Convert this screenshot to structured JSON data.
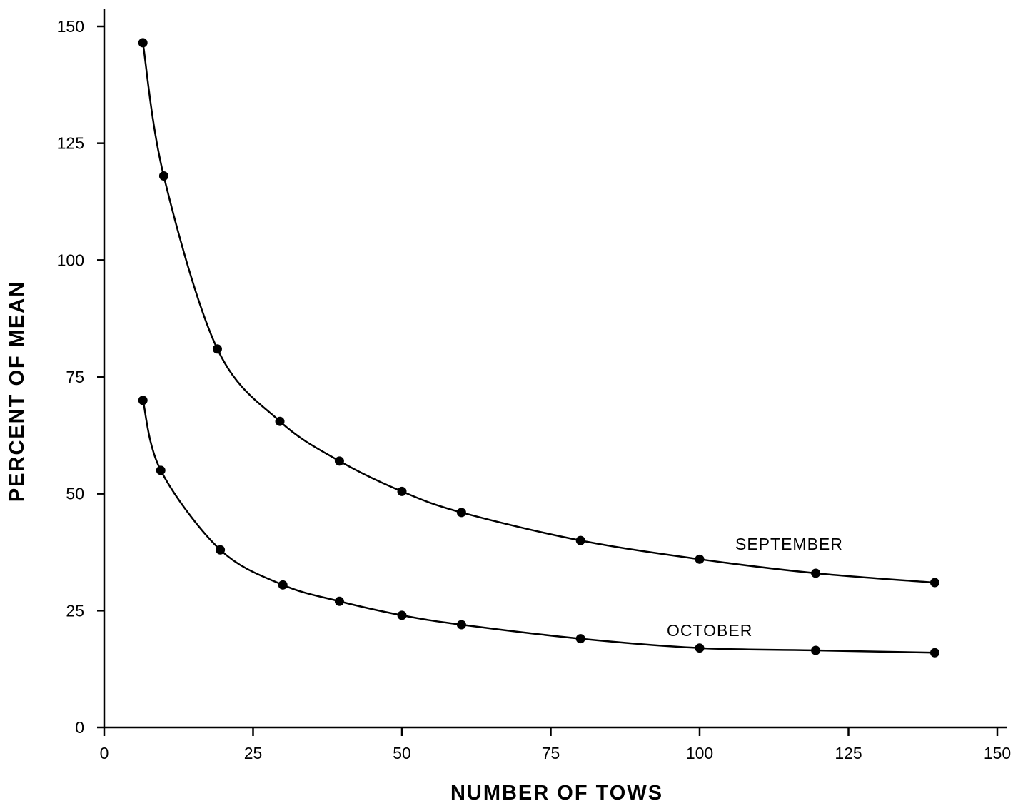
{
  "chart_data": {
    "type": "line",
    "xlabel": "NUMBER OF TOWS",
    "ylabel": "PERCENT OF MEAN",
    "xlim": [
      0,
      150
    ],
    "ylim": [
      0,
      150
    ],
    "xticks": [
      0,
      25,
      50,
      75,
      100,
      125,
      150
    ],
    "yticks": [
      0,
      25,
      50,
      75,
      100,
      125,
      150
    ],
    "x_tick_labels": [
      "0",
      "25",
      "50",
      "75",
      "100",
      "125",
      "150"
    ],
    "y_tick_labels": [
      "0",
      "25",
      "50",
      "75",
      "100",
      "125",
      "150"
    ],
    "grid": false,
    "series": [
      {
        "name": "SEPTEMBER",
        "x": [
          6.5,
          10,
          19,
          29.5,
          39.5,
          50,
          60,
          80,
          100,
          119.5,
          139.5
        ],
        "y": [
          146.5,
          118,
          81,
          65.5,
          57,
          50.5,
          46,
          40,
          36,
          33,
          31
        ]
      },
      {
        "name": "OCTOBER",
        "x": [
          6.5,
          9.5,
          19.5,
          30,
          39.5,
          50,
          60,
          80,
          100,
          119.5,
          139.5
        ],
        "y": [
          70,
          55,
          38,
          30.5,
          27,
          24,
          22,
          19,
          17,
          16.5,
          16
        ]
      }
    ]
  }
}
